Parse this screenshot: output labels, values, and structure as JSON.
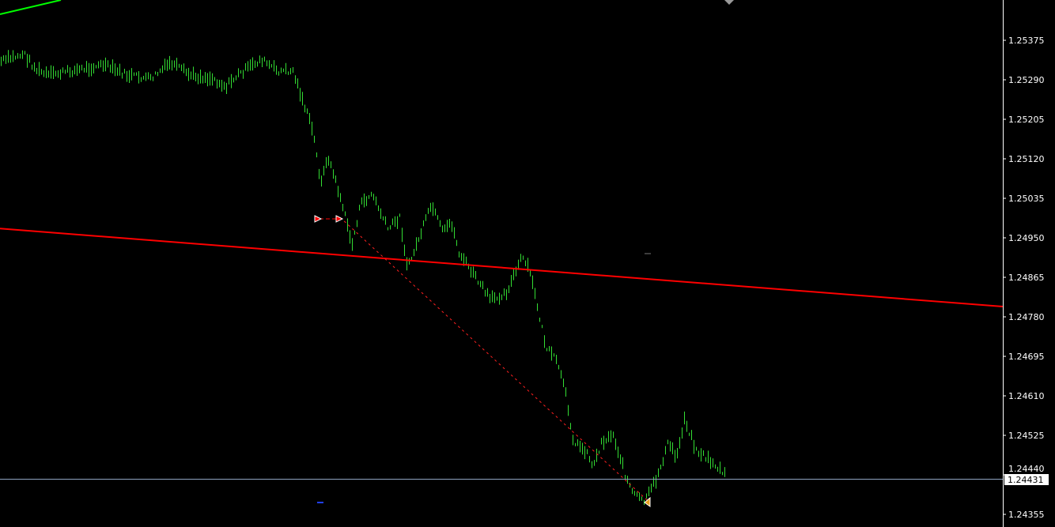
{
  "chart_data": {
    "type": "bar",
    "style": "ohlc-price-chart",
    "colors": {
      "background": "#000000",
      "bars": "#33dd33",
      "trendline": "#ff0000",
      "bid_line": "#8fa3c0",
      "axis": "#ffffff",
      "indicator": "#00ff00"
    },
    "ylim": [
      1.24325,
      1.2542
    ],
    "y_ticks": [
      "1.25375",
      "1.25290",
      "1.25205",
      "1.25120",
      "1.25035",
      "1.24950",
      "1.24865",
      "1.24780",
      "1.24695",
      "1.24610",
      "1.24525",
      "1.24440",
      "1.24355"
    ],
    "current_price": "1.24431",
    "price_path": {
      "bar": [
        0,
        6,
        9,
        12,
        20,
        26,
        32,
        38,
        43,
        48,
        54,
        57,
        60,
        66,
        70,
        74,
        76,
        79,
        81,
        83,
        86,
        89,
        91,
        94,
        98,
        101,
        103,
        106,
        109,
        112,
        114,
        116,
        120,
        124,
        128,
        132,
        134,
        138,
        141,
        143,
        145,
        148,
        150,
        152,
        155,
        158,
        160,
        163,
        166,
        169,
        171,
        173,
        176,
        180,
        183
      ],
      "price": [
        1.25329,
        1.25346,
        1.25312,
        1.253,
        1.25312,
        1.25322,
        1.253,
        1.25292,
        1.25326,
        1.253,
        1.25292,
        1.25275,
        1.253,
        1.25334,
        1.25309,
        1.25309,
        1.25258,
        1.25181,
        1.25071,
        1.25122,
        1.25037,
        1.24935,
        1.2502,
        1.25045,
        1.24969,
        1.24994,
        1.24884,
        1.24952,
        1.2502,
        1.2496,
        1.24986,
        1.24918,
        1.24867,
        1.24816,
        1.24833,
        1.24909,
        1.24875,
        1.24714,
        1.2468,
        1.24612,
        1.2451,
        1.24493,
        1.24459,
        1.2451,
        1.24527,
        1.24442,
        1.24399,
        1.24382,
        1.24433,
        1.2451,
        1.24476,
        1.24561,
        1.24493,
        1.24467,
        1.24442
      ]
    },
    "trendline": {
      "start_price": 1.2497,
      "end_price": 1.24802
    },
    "dashed_trade_line": {
      "start_price": 1.24994,
      "end_price": 1.24386
    }
  }
}
